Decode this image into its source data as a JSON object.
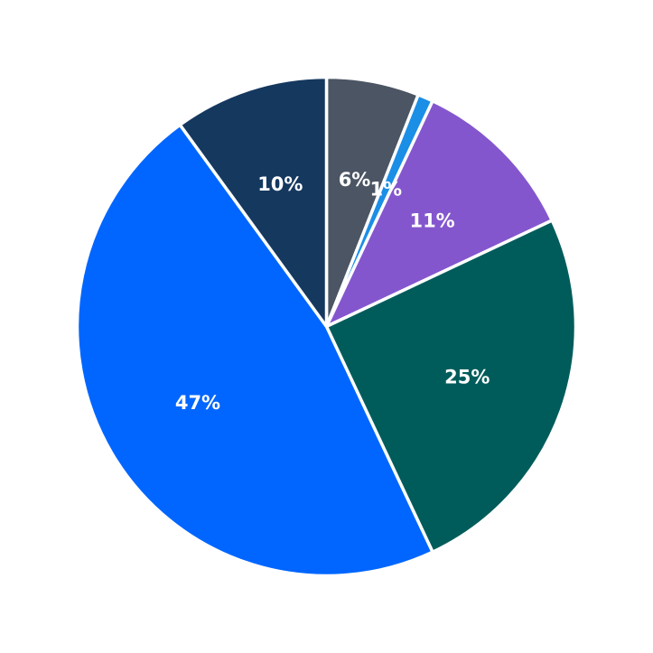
{
  "chart_data": {
    "type": "pie",
    "title": "",
    "start_angle_deg": 90,
    "direction": "clockwise",
    "legend": "none",
    "slices": [
      {
        "label": "6%",
        "value": 6,
        "color": "#4b5563"
      },
      {
        "label": "1%",
        "value": 1,
        "color": "#1b8ee6"
      },
      {
        "label": "11%",
        "value": 11,
        "color": "#8456ce"
      },
      {
        "label": "25%",
        "value": 25,
        "color": "#005c5b"
      },
      {
        "label": "47%",
        "value": 47,
        "color": "#0066ff"
      },
      {
        "label": "10%",
        "value": 10,
        "color": "#15385f"
      }
    ]
  }
}
